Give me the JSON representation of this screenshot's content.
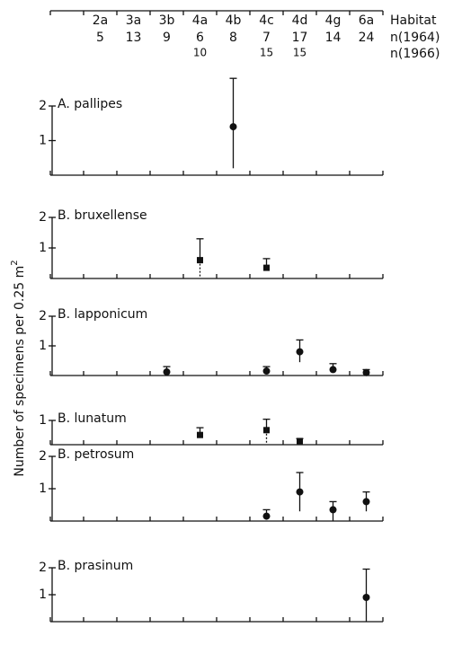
{
  "chart_data": {
    "type": "errorbar",
    "category_label": "Habitat",
    "categories": [
      "2a",
      "3a",
      "3b",
      "4a",
      "4b",
      "4c",
      "4d",
      "4g",
      "6a"
    ],
    "counts": [
      {
        "name": "n(1964)",
        "values": [
          5,
          13,
          9,
          6,
          8,
          7,
          17,
          14,
          24
        ]
      },
      {
        "name": "n(1966)",
        "values": [
          null,
          null,
          null,
          10,
          null,
          15,
          15,
          null,
          null
        ]
      }
    ],
    "y_label": {
      "text": "Number of specimens per 0.25 m",
      "superscript": "2"
    },
    "panels": [
      {
        "title": "A. pallipes",
        "ylim": [
          0,
          2
        ],
        "yticks": [
          1,
          2
        ],
        "values": [
          null,
          null,
          null,
          null,
          1.4,
          null,
          null,
          null,
          null
        ],
        "lower": [
          null,
          null,
          null,
          null,
          0.2,
          null,
          null,
          null,
          null
        ],
        "upper": [
          null,
          null,
          null,
          null,
          2.8,
          null,
          null,
          null,
          null
        ],
        "markers": [
          null,
          null,
          null,
          null,
          "circle",
          null,
          null,
          null,
          null
        ]
      },
      {
        "title": "B. bruxellense",
        "ylim": [
          0,
          2
        ],
        "yticks": [
          1,
          2
        ],
        "values": [
          null,
          null,
          null,
          0.6,
          null,
          0.35,
          null,
          null,
          null
        ],
        "lower": [
          null,
          null,
          null,
          0,
          null,
          0.35,
          null,
          null,
          null
        ],
        "upper": [
          null,
          null,
          null,
          1.3,
          null,
          0.65,
          null,
          null,
          null
        ],
        "markers": [
          null,
          null,
          null,
          "square",
          null,
          "square",
          null,
          null,
          null
        ]
      },
      {
        "title": "B. lapponicum",
        "ylim": [
          0,
          2
        ],
        "yticks": [
          1,
          2
        ],
        "values": [
          null,
          null,
          0.12,
          null,
          null,
          0.15,
          0.8,
          0.2,
          0.1
        ],
        "lower": [
          null,
          null,
          0.1,
          null,
          null,
          0.1,
          0.45,
          0.1,
          0.05
        ],
        "upper": [
          null,
          null,
          0.3,
          null,
          null,
          0.3,
          1.2,
          0.4,
          0.2
        ],
        "markers": [
          null,
          null,
          "circle",
          null,
          null,
          "circle",
          "circle",
          "circle",
          "circle"
        ]
      },
      {
        "title": "B. lunatum",
        "ylim": [
          0,
          1
        ],
        "yticks": [
          1
        ],
        "values": [
          null,
          null,
          null,
          0.4,
          null,
          0.6,
          0.15,
          null,
          null
        ],
        "lower": [
          null,
          null,
          null,
          0.25,
          null,
          0,
          0.1,
          null,
          null
        ],
        "upper": [
          null,
          null,
          null,
          0.7,
          null,
          1.05,
          0.25,
          null,
          null
        ],
        "markers": [
          null,
          null,
          null,
          "square",
          null,
          "square",
          "square",
          null,
          null
        ]
      },
      {
        "title": "B. petrosum",
        "ylim": [
          0,
          2
        ],
        "yticks": [
          1,
          2
        ],
        "values": [
          null,
          null,
          null,
          null,
          null,
          0.15,
          0.9,
          0.35,
          0.6
        ],
        "lower": [
          null,
          null,
          null,
          null,
          null,
          0.05,
          0.3,
          0,
          0.3
        ],
        "upper": [
          null,
          null,
          null,
          null,
          null,
          0.35,
          1.5,
          0.6,
          0.9
        ],
        "markers": [
          null,
          null,
          null,
          null,
          null,
          "circle",
          "circle",
          "circle",
          "circle"
        ]
      },
      {
        "title": "B. prasinum",
        "ylim": [
          0,
          2
        ],
        "yticks": [
          1,
          2
        ],
        "values": [
          null,
          null,
          null,
          null,
          null,
          null,
          null,
          null,
          0.9
        ],
        "lower": [
          null,
          null,
          null,
          null,
          null,
          null,
          null,
          null,
          0
        ],
        "upper": [
          null,
          null,
          null,
          null,
          null,
          null,
          null,
          null,
          1.95
        ],
        "markers": [
          null,
          null,
          null,
          null,
          null,
          null,
          null,
          null,
          "circle"
        ]
      }
    ]
  }
}
